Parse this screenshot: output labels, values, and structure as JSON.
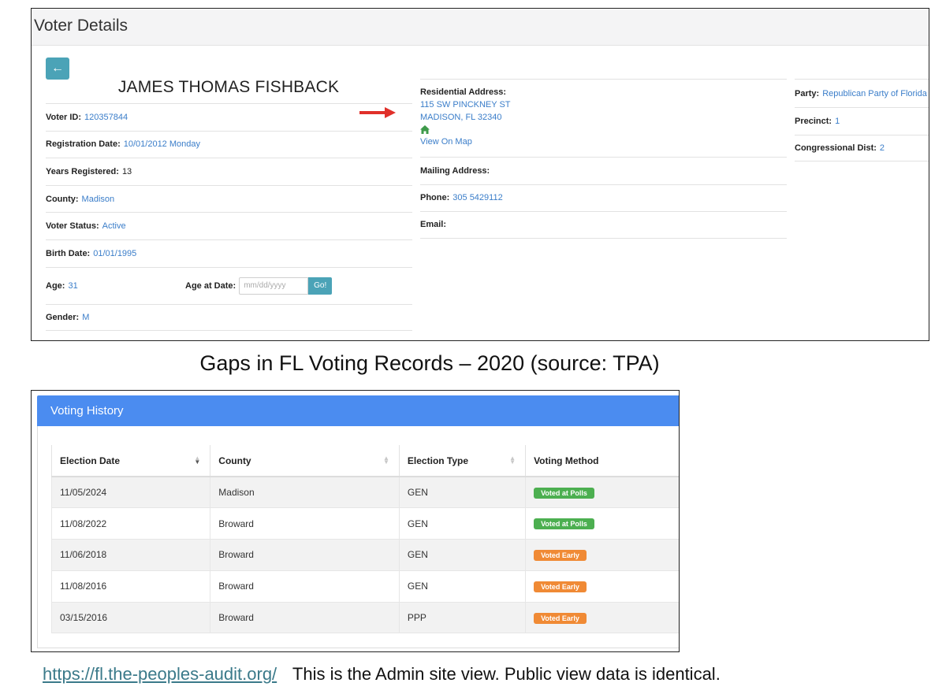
{
  "voter_details": {
    "title": "Voter Details",
    "back_icon": "arrow-left-icon",
    "name": "JAMES THOMAS FISHBACK",
    "left": {
      "voter_id": {
        "label": "Voter ID:",
        "value": "120357844"
      },
      "registration_date": {
        "label": "Registration Date:",
        "value": "10/01/2012 Monday"
      },
      "years_registered": {
        "label": "Years Registered:",
        "value": "13"
      },
      "county": {
        "label": "County:",
        "value": "Madison"
      },
      "voter_status": {
        "label": "Voter Status:",
        "value": "Active"
      },
      "birth_date": {
        "label": "Birth Date:",
        "value": "01/01/1995"
      },
      "age": {
        "label": "Age:",
        "value": "31"
      },
      "age_at_date": {
        "label": "Age at Date:",
        "placeholder": "mm/dd/yyyy",
        "button": "Go!"
      },
      "gender": {
        "label": "Gender:",
        "value": "M"
      }
    },
    "middle": {
      "residential_address": {
        "label": "Residential Address:",
        "line1": "115 SW PINCKNEY ST",
        "line2": "MADISON, FL 32340",
        "map_link": "View On Map",
        "icon": "home-icon"
      },
      "mailing_address": {
        "label": "Mailing Address:"
      },
      "phone": {
        "label": "Phone:",
        "value": "305 5429112"
      },
      "email": {
        "label": "Email:"
      }
    },
    "right": {
      "party": {
        "label": "Party:",
        "value": "Republican Party of Florida"
      },
      "precinct": {
        "label": "Precinct:",
        "value": "1"
      },
      "congressional_dist": {
        "label": "Congressional Dist:",
        "value": "2"
      }
    }
  },
  "caption": "Gaps in FL Voting Records – 2020 (source: TPA)",
  "voting_history": {
    "title": "Voting History",
    "columns": [
      "Election Date",
      "County",
      "Election Type",
      "Voting Method"
    ],
    "rows": [
      {
        "date": "11/05/2024",
        "county": "Madison",
        "type": "GEN",
        "method": "Voted at Polls"
      },
      {
        "date": "11/08/2022",
        "county": "Broward",
        "type": "GEN",
        "method": "Voted at Polls"
      },
      {
        "date": "11/06/2018",
        "county": "Broward",
        "type": "GEN",
        "method": "Voted Early"
      },
      {
        "date": "11/08/2016",
        "county": "Broward",
        "type": "GEN",
        "method": "Voted Early"
      },
      {
        "date": "03/15/2016",
        "county": "Broward",
        "type": "PPP",
        "method": "Voted Early"
      }
    ],
    "colors": {
      "header": "#4b8cf0",
      "polls_badge": "#4caf50",
      "early_badge": "#f08a35"
    }
  },
  "footer": {
    "link_text": "https://fl.the-peoples-audit.org/",
    "note": "This is the Admin site view. Public view data is identical."
  }
}
